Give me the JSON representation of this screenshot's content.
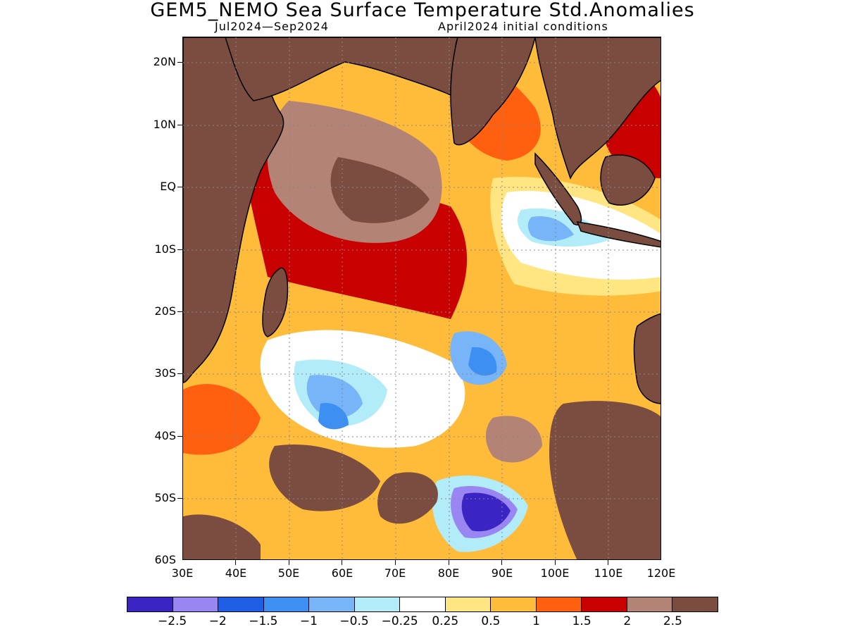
{
  "title": "GEM5_NEMO Sea Surface Temperature Std.Anomalies",
  "subtitle_left": "Jul2024—Sep2024",
  "subtitle_right": "April2024 initial conditions",
  "lat_labels": [
    "20N",
    "10N",
    "EQ",
    "10S",
    "20S",
    "30S",
    "40S",
    "50S",
    "60S"
  ],
  "lon_labels": [
    "30E",
    "40E",
    "50E",
    "60E",
    "70E",
    "80E",
    "90E",
    "100E",
    "110E",
    "120E"
  ],
  "colorbar": {
    "colors": [
      "#3b24c4",
      "#9a86f2",
      "#1f5fe4",
      "#3d8ff2",
      "#78b4f8",
      "#b2ecf8",
      "#ffffff",
      "#ffe682",
      "#ffbb3a",
      "#ff6010",
      "#c80000",
      "#b38476",
      "#7a4d40"
    ],
    "labels": [
      "−2.5",
      "−2",
      "−1.5",
      "−1",
      "−0.5",
      "−0.25",
      "0.25",
      "0.5",
      "1",
      "1.5",
      "2",
      "2.5"
    ]
  },
  "land_color": "#7a4d40"
}
